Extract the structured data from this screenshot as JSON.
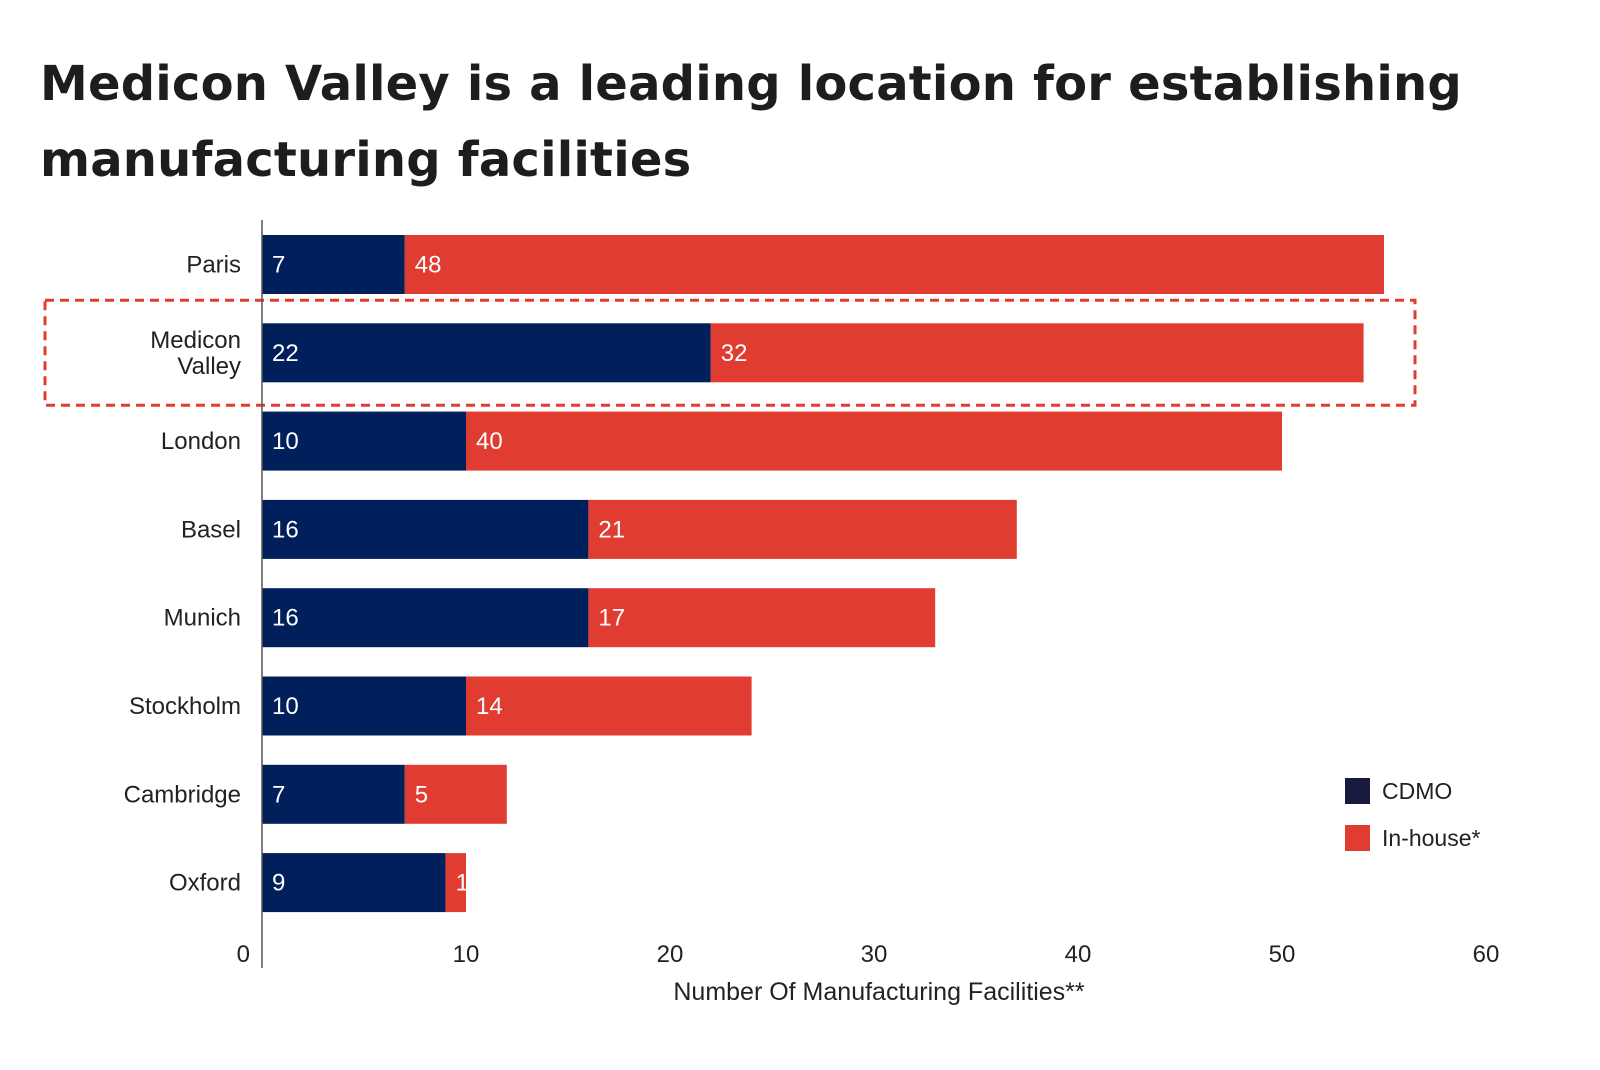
{
  "title": "Medicon Valley is a leading location for establishing manufacturing facilities",
  "chart_data": {
    "type": "bar",
    "orientation": "horizontal",
    "stacked": true,
    "categories": [
      "Paris",
      "Medicon Valley",
      "London",
      "Basel",
      "Munich",
      "Stockholm",
      "Cambridge",
      "Oxford"
    ],
    "series": [
      {
        "name": "CDMO",
        "color": "#001f5b",
        "values": [
          7,
          22,
          10,
          16,
          16,
          10,
          7,
          9
        ]
      },
      {
        "name": "In-house*",
        "color": "#e03c31",
        "values": [
          48,
          32,
          40,
          21,
          17,
          14,
          5,
          1
        ]
      }
    ],
    "xlabel": "Number Of Manufacturing Facilities**",
    "xlim": [
      0,
      60
    ],
    "xticks": [
      0,
      10,
      20,
      30,
      40,
      50,
      60
    ],
    "grid": false,
    "legend_position": "bottom-right",
    "highlight_category": "Medicon Valley",
    "highlight_color": "#e03c31"
  }
}
